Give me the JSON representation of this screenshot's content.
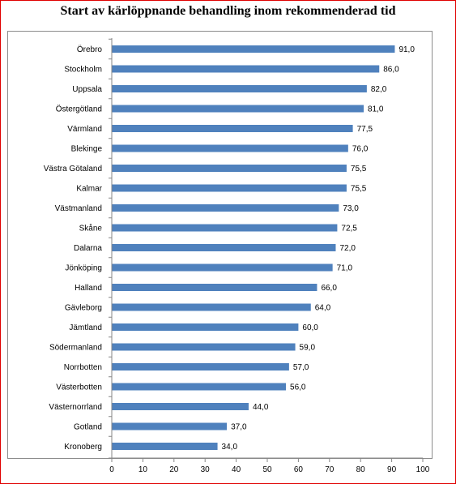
{
  "chart_data": {
    "type": "bar",
    "orientation": "horizontal",
    "title": "Start av kärlöppnande behandling inom rekommenderad tid",
    "categories": [
      "Örebro",
      "Stockholm",
      "Uppsala",
      "Östergötland",
      "Värmland",
      "Blekinge",
      "Västra Götaland",
      "Kalmar",
      "Västmanland",
      "Skåne",
      "Dalarna",
      "Jönköping",
      "Halland",
      "Gävleborg",
      "Jämtland",
      "Södermanland",
      "Norrbotten",
      "Västerbotten",
      "Västernorrland",
      "Gotland",
      "Kronoberg"
    ],
    "values": [
      91.0,
      86.0,
      82.0,
      81.0,
      77.5,
      76.0,
      75.5,
      75.5,
      73.0,
      72.5,
      72.0,
      71.0,
      66.0,
      64.0,
      60.0,
      59.0,
      57.0,
      56.0,
      44.0,
      37.0,
      34.0
    ],
    "value_labels": [
      "91,0",
      "86,0",
      "82,0",
      "81,0",
      "77,5",
      "76,0",
      "75,5",
      "75,5",
      "73,0",
      "72,5",
      "72,0",
      "71,0",
      "66,0",
      "64,0",
      "60,0",
      "59,0",
      "57,0",
      "56,0",
      "44,0",
      "37,0",
      "34,0"
    ],
    "xlim": [
      0,
      100
    ],
    "xticks": [
      "0",
      "10",
      "20",
      "30",
      "40",
      "50",
      "60",
      "70",
      "80",
      "90",
      "100"
    ],
    "grid": false,
    "legend": "none",
    "bar_color": "#4f81bd"
  }
}
